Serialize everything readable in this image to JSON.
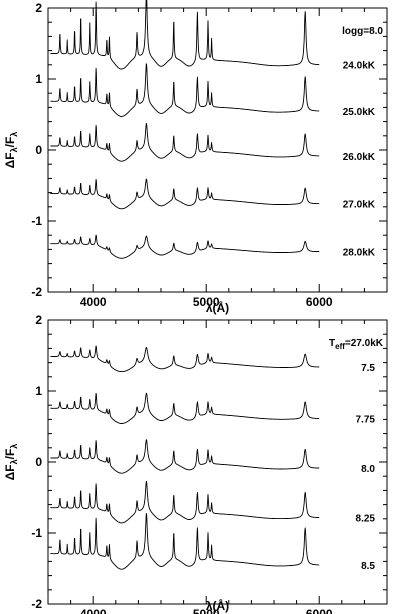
{
  "chart_data": [
    {
      "type": "line",
      "panel": "top",
      "xlabel": "λ(Å)",
      "ylabel_main": "ΔF",
      "ylabel_sub1": "λ",
      "ylabel_mid": "/F",
      "ylabel_sub2": "λ",
      "xlim": [
        3600,
        6600
      ],
      "ylim": [
        -2,
        2
      ],
      "xticks": [
        4000,
        5000,
        6000
      ],
      "yticks": [
        -2,
        -1,
        0,
        1,
        2
      ],
      "annotation": "logg=8.0",
      "series": [
        {
          "name": "24.0kK",
          "offset": 1.2,
          "amp": 1.0,
          "broad": 0.8,
          "tilt": 0.35
        },
        {
          "name": "25.0kK",
          "offset": 0.55,
          "amp": 0.65,
          "broad": 0.9,
          "tilt": 0.3
        },
        {
          "name": "26.0kK",
          "offset": -0.08,
          "amp": 0.42,
          "broad": 1.0,
          "tilt": 0.3
        },
        {
          "name": "27.0kK",
          "offset": -0.75,
          "amp": 0.3,
          "broad": 1.1,
          "tilt": 0.3
        },
        {
          "name": "28.0kK",
          "offset": -1.42,
          "amp": 0.2,
          "broad": 1.3,
          "tilt": 0.22
        }
      ]
    },
    {
      "type": "line",
      "panel": "bottom",
      "xlabel": "λ(Å)",
      "ylabel_main": "ΔF",
      "ylabel_sub1": "λ",
      "ylabel_mid": "/F",
      "ylabel_sub2": "λ",
      "xlim": [
        3600,
        6600
      ],
      "ylim": [
        -2,
        2
      ],
      "xticks": [
        4000,
        5000,
        6000
      ],
      "yticks": [
        -2,
        -1,
        0,
        1,
        2
      ],
      "annotation_main": "T",
      "annotation_sub": "eff",
      "annotation_rest": "=27.0kK",
      "series": [
        {
          "name": "7.5",
          "offset": 1.35,
          "amp": 0.25,
          "broad": 1.4,
          "tilt": 0.3
        },
        {
          "name": "7.75",
          "offset": 0.62,
          "amp": 0.32,
          "broad": 1.2,
          "tilt": 0.3
        },
        {
          "name": "8.0",
          "offset": -0.08,
          "amp": 0.36,
          "broad": 1.1,
          "tilt": 0.3
        },
        {
          "name": "8.25",
          "offset": -0.78,
          "amp": 0.48,
          "broad": 1.0,
          "tilt": 0.3
        },
        {
          "name": "8.5",
          "offset": -1.45,
          "amp": 0.7,
          "broad": 0.9,
          "tilt": 0.35
        }
      ]
    }
  ]
}
